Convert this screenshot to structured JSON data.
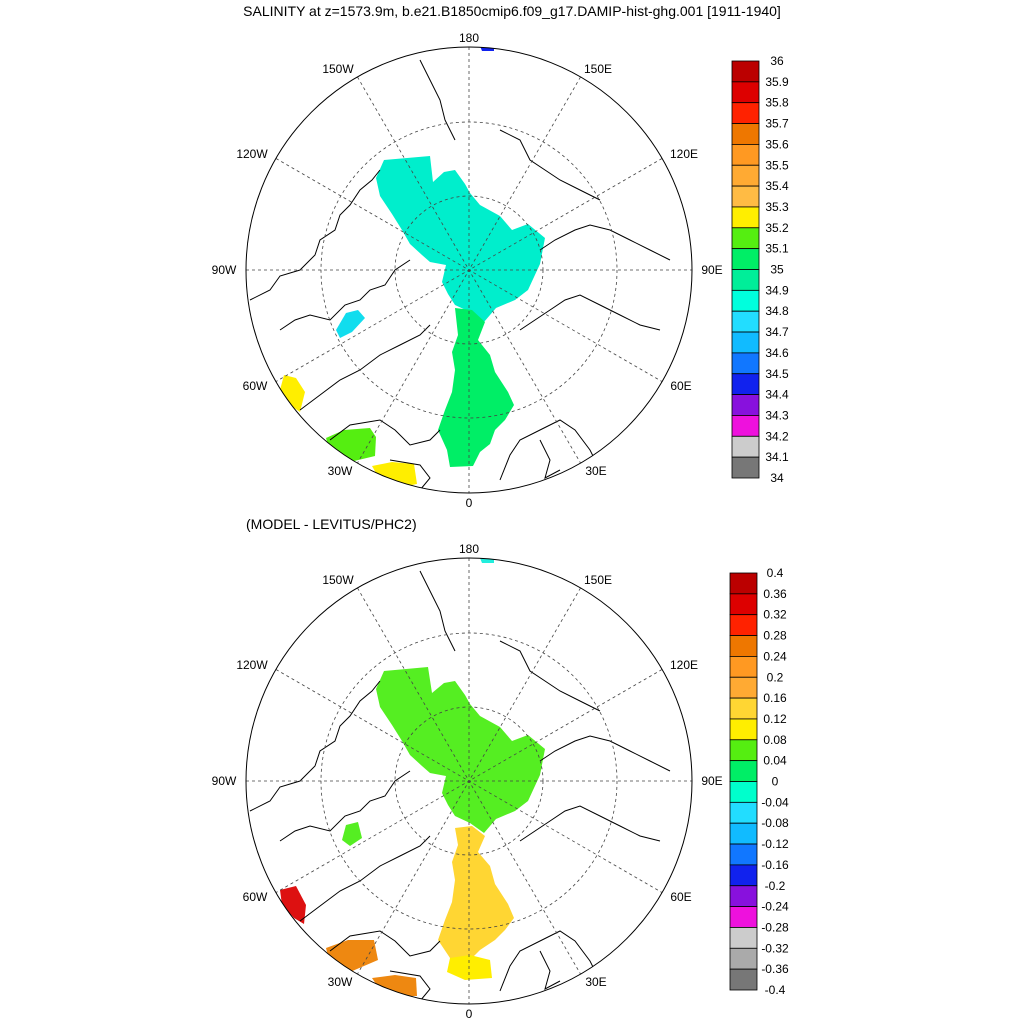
{
  "top_title": "SALINITY at z=1573.9m, b.e21.B1850cmip6.f09_g17.DAMIP-hist-ghg.001 [1911-1940]",
  "bottom_title": "(MODEL - LEVITUS/PHC2)",
  "lon_labels": {
    "lon_180": "180",
    "lon_150w": "150W",
    "lon_150e": "150E",
    "lon_120w": "120W",
    "lon_120e": "120E",
    "lon_90w": "90W",
    "lon_90e": "90E",
    "lon_60w": "60W",
    "lon_60e": "60E",
    "lon_30w": "30W",
    "lon_30e": "30E",
    "lon_0": "0"
  },
  "colors": {
    "land_line": "#000000",
    "grid_line": "#444444",
    "top_arctic": "#00eecc",
    "top_atlantic": "#00ee66",
    "top_baffin": "#11ddee",
    "top_yellow": "#ffee00",
    "top_green2": "#55ee11",
    "top_blue": "#1122ee",
    "bot_arctic": "#55ee22",
    "bot_atlantic": "#ffd633",
    "bot_yellow": "#ffee00",
    "bot_red": "#dd1111",
    "bot_orange": "#ee8811",
    "bot_cyan": "#22eedd"
  },
  "top_colorbar": {
    "labels": [
      "36",
      "35.9",
      "35.8",
      "35.7",
      "35.6",
      "35.5",
      "35.4",
      "35.3",
      "35.2",
      "35.1",
      "35",
      "34.9",
      "34.8",
      "34.7",
      "34.6",
      "34.5",
      "34.4",
      "34.3",
      "34.2",
      "34.1",
      "34"
    ],
    "colors": [
      "#bb0000",
      "#dd0000",
      "#ff2200",
      "#ee7700",
      "#ff9922",
      "#ffaa33",
      "#ffbb44",
      "#ffee00",
      "#55ee11",
      "#00ee66",
      "#00ee99",
      "#00ffdd",
      "#22ddff",
      "#11bbff",
      "#1177ff",
      "#1122ee",
      "#8811dd",
      "#ee11dd",
      "#cccccc",
      "#777777"
    ]
  },
  "bottom_colorbar": {
    "labels": [
      "0.4",
      "0.36",
      "0.32",
      "0.28",
      "0.24",
      "0.2",
      "0.16",
      "0.12",
      "0.08",
      "0.04",
      "0",
      "-0.04",
      "-0.08",
      "-0.12",
      "-0.16",
      "-0.2",
      "-0.24",
      "-0.28",
      "-0.32",
      "-0.36",
      "-0.4"
    ],
    "colors": [
      "#bb0000",
      "#dd0000",
      "#ff2200",
      "#ee7700",
      "#ff9922",
      "#ffaa33",
      "#ffd633",
      "#ffee00",
      "#55ee11",
      "#00ee66",
      "#00ffcc",
      "#22ddff",
      "#11bbff",
      "#1177ff",
      "#1122ee",
      "#8811dd",
      "#ee11dd",
      "#cccccc",
      "#aaaaaa",
      "#777777"
    ]
  }
}
